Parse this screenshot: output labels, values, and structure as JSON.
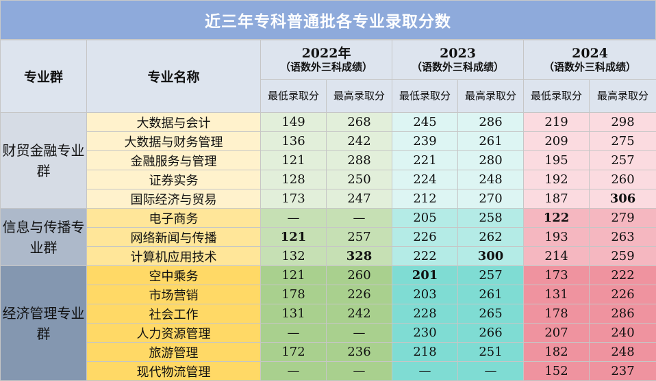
{
  "title": "近三年专科普通批各专业录取分数",
  "header": {
    "group_col": "专业群",
    "major_col": "专业名称",
    "years": [
      {
        "year": "2022年",
        "note": "（语数外三科成绩）",
        "min_label": "最低录取分",
        "max_label": "最高录取分"
      },
      {
        "year": "2023",
        "note": "（语数外三科成绩）",
        "min_label": "最低录取分",
        "max_label": "最高录取分"
      },
      {
        "year": "2024",
        "note": "（语数外三科成绩）",
        "min_label": "最低录取分",
        "max_label": "最高录取分"
      }
    ]
  },
  "groups": [
    {
      "name": "财贸金融专业群",
      "rows": [
        {
          "major": "大数据与会计",
          "scores": [
            "149",
            "268",
            "245",
            "286",
            "219",
            "298"
          ],
          "bold": []
        },
        {
          "major": "大数据与财务管理",
          "scores": [
            "136",
            "242",
            "239",
            "261",
            "209",
            "275"
          ],
          "bold": []
        },
        {
          "major": "金融服务与管理",
          "scores": [
            "121",
            "288",
            "221",
            "280",
            "195",
            "257"
          ],
          "bold": []
        },
        {
          "major": "证券实务",
          "scores": [
            "128",
            "250",
            "224",
            "248",
            "192",
            "260"
          ],
          "bold": []
        },
        {
          "major": "国际经济与贸易",
          "scores": [
            "173",
            "247",
            "212",
            "270",
            "187",
            "306"
          ],
          "bold": [
            5
          ]
        }
      ]
    },
    {
      "name": "信息与传播专业群",
      "rows": [
        {
          "major": "电子商务",
          "scores": [
            "—",
            "—",
            "205",
            "258",
            "122",
            "279"
          ],
          "bold": [
            4
          ]
        },
        {
          "major": "网络新闻与传播",
          "scores": [
            "121",
            "257",
            "226",
            "262",
            "193",
            "263"
          ],
          "bold": [
            0
          ]
        },
        {
          "major": "计算机应用技术",
          "scores": [
            "132",
            "328",
            "222",
            "300",
            "214",
            "259"
          ],
          "bold": [
            1,
            3
          ]
        }
      ]
    },
    {
      "name": "经济管理专业群",
      "rows": [
        {
          "major": "空中乘务",
          "scores": [
            "121",
            "260",
            "201",
            "257",
            "173",
            "222"
          ],
          "bold": [
            2
          ]
        },
        {
          "major": "市场营销",
          "scores": [
            "178",
            "226",
            "203",
            "261",
            "131",
            "226"
          ],
          "bold": []
        },
        {
          "major": "社会工作",
          "scores": [
            "131",
            "242",
            "228",
            "265",
            "178",
            "286"
          ],
          "bold": []
        },
        {
          "major": "人力资源管理",
          "scores": [
            "—",
            "—",
            "230",
            "266",
            "207",
            "240"
          ],
          "bold": []
        },
        {
          "major": "旅游管理",
          "scores": [
            "172",
            "236",
            "218",
            "251",
            "182",
            "248"
          ],
          "bold": []
        },
        {
          "major": "现代物流管理",
          "scores": [
            "—",
            "—",
            "—",
            "—",
            "152",
            "237"
          ],
          "bold": []
        }
      ]
    }
  ],
  "palette": {
    "group_bg": [
      "#d6dce5",
      "#adb9ca",
      "#8497b0"
    ],
    "major_bg": [
      "#fff2cc",
      "#ffe699",
      "#ffd966"
    ],
    "y2022_bg": [
      "#e2efda",
      "#c6e0b4",
      "#a9d08e"
    ],
    "y2023_bg": [
      "#ddf5f3",
      "#b4ebe6",
      "#7fdcd3"
    ],
    "y2024_bg": [
      "#fbdbe0",
      "#f5b7c0",
      "#ef939f"
    ]
  }
}
